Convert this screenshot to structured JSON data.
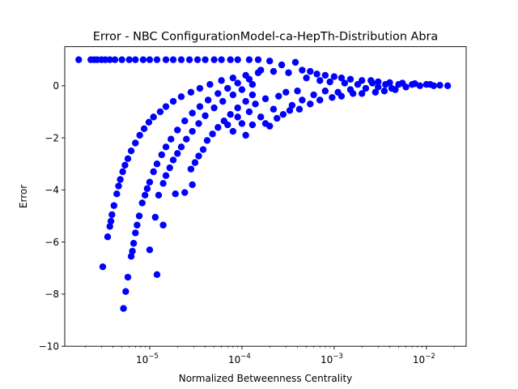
{
  "chart_data": {
    "type": "scatter",
    "title": "Error - NBC ConfigurationModel-ca-HepTh-Distribution Abra",
    "xlabel": "Normalized Betweenness Centrality",
    "ylabel": "Error",
    "xscale": "log",
    "xlim": [
      1.2e-06,
      0.027
    ],
    "ylim": [
      -10,
      1.5
    ],
    "x_ticks": [
      {
        "value": 1e-05,
        "base": "10",
        "exp": "−5"
      },
      {
        "value": 0.0001,
        "base": "10",
        "exp": "−4"
      },
      {
        "value": 0.001,
        "base": "10",
        "exp": "−3"
      },
      {
        "value": 0.01,
        "base": "10",
        "exp": "−2"
      }
    ],
    "y_ticks": [
      {
        "value": 0,
        "label": "0"
      },
      {
        "value": -2,
        "label": "−2"
      },
      {
        "value": -4,
        "label": "−4"
      },
      {
        "value": -6,
        "label": "−6"
      },
      {
        "value": -8,
        "label": "−8"
      },
      {
        "value": -10,
        "label": "−10"
      }
    ],
    "grid": false,
    "marker_color": "#0000ff",
    "series": [
      {
        "name": "",
        "points": [
          {
            "x": 1.7e-06,
            "y": 1.0
          },
          {
            "x": 2.3e-06,
            "y": 1.0
          },
          {
            "x": 2.5e-06,
            "y": 1.0
          },
          {
            "x": 2.7e-06,
            "y": 1.0
          },
          {
            "x": 3e-06,
            "y": 1.0
          },
          {
            "x": 3.3e-06,
            "y": 1.0
          },
          {
            "x": 3.7e-06,
            "y": 1.0
          },
          {
            "x": 4.2e-06,
            "y": 1.0
          },
          {
            "x": 5e-06,
            "y": 1.0
          },
          {
            "x": 6e-06,
            "y": 1.0
          },
          {
            "x": 7e-06,
            "y": 1.0
          },
          {
            "x": 8.5e-06,
            "y": 1.0
          },
          {
            "x": 1e-05,
            "y": 1.0
          },
          {
            "x": 1.2e-05,
            "y": 1.0
          },
          {
            "x": 1.5e-05,
            "y": 1.0
          },
          {
            "x": 1.8e-05,
            "y": 1.0
          },
          {
            "x": 2.2e-05,
            "y": 1.0
          },
          {
            "x": 2.7e-05,
            "y": 1.0
          },
          {
            "x": 3.3e-05,
            "y": 1.0
          },
          {
            "x": 4e-05,
            "y": 1.0
          },
          {
            "x": 5e-05,
            "y": 1.0
          },
          {
            "x": 6e-05,
            "y": 1.0
          },
          {
            "x": 7.5e-05,
            "y": 1.0
          },
          {
            "x": 9e-05,
            "y": 1.0
          },
          {
            "x": 0.00012,
            "y": 1.0
          },
          {
            "x": 0.00015,
            "y": 1.0
          },
          {
            "x": 0.0002,
            "y": 0.95
          },
          {
            "x": 3.1e-06,
            "y": -6.95
          },
          {
            "x": 3.5e-06,
            "y": -5.8
          },
          {
            "x": 3.7e-06,
            "y": -5.4
          },
          {
            "x": 3.8e-06,
            "y": -5.2
          },
          {
            "x": 3.9e-06,
            "y": -4.95
          },
          {
            "x": 4.1e-06,
            "y": -4.6
          },
          {
            "x": 4.4e-06,
            "y": -4.15
          },
          {
            "x": 4.6e-06,
            "y": -3.85
          },
          {
            "x": 4.8e-06,
            "y": -3.6
          },
          {
            "x": 5.1e-06,
            "y": -3.3
          },
          {
            "x": 5.4e-06,
            "y": -3.05
          },
          {
            "x": 5.8e-06,
            "y": -2.8
          },
          {
            "x": 6.3e-06,
            "y": -2.5
          },
          {
            "x": 7e-06,
            "y": -2.2
          },
          {
            "x": 7.8e-06,
            "y": -1.9
          },
          {
            "x": 8.7e-06,
            "y": -1.65
          },
          {
            "x": 9.8e-06,
            "y": -1.4
          },
          {
            "x": 1.1e-05,
            "y": -1.2
          },
          {
            "x": 1.3e-05,
            "y": -1.0
          },
          {
            "x": 1.5e-05,
            "y": -0.8
          },
          {
            "x": 1.8e-05,
            "y": -0.6
          },
          {
            "x": 2.2e-05,
            "y": -0.42
          },
          {
            "x": 2.8e-05,
            "y": -0.25
          },
          {
            "x": 3.5e-05,
            "y": -0.1
          },
          {
            "x": 4.5e-05,
            "y": 0.05
          },
          {
            "x": 6e-05,
            "y": 0.2
          },
          {
            "x": 8e-05,
            "y": 0.3
          },
          {
            "x": 0.00011,
            "y": 0.4
          },
          {
            "x": 0.00015,
            "y": 0.5
          },
          {
            "x": 5.2e-06,
            "y": -8.55
          },
          {
            "x": 5.5e-06,
            "y": -7.9
          },
          {
            "x": 5.8e-06,
            "y": -7.35
          },
          {
            "x": 6.3e-06,
            "y": -6.55
          },
          {
            "x": 6.5e-06,
            "y": -6.35
          },
          {
            "x": 6.7e-06,
            "y": -6.05
          },
          {
            "x": 7e-06,
            "y": -5.65
          },
          {
            "x": 7.3e-06,
            "y": -5.35
          },
          {
            "x": 7.7e-06,
            "y": -5.0
          },
          {
            "x": 8.3e-06,
            "y": -4.5
          },
          {
            "x": 8.9e-06,
            "y": -4.2
          },
          {
            "x": 9.4e-06,
            "y": -3.95
          },
          {
            "x": 1e-05,
            "y": -3.7
          },
          {
            "x": 1.1e-05,
            "y": -3.3
          },
          {
            "x": 1.2e-05,
            "y": -3.0
          },
          {
            "x": 1.35e-05,
            "y": -2.65
          },
          {
            "x": 1.5e-05,
            "y": -2.35
          },
          {
            "x": 1.7e-05,
            "y": -2.05
          },
          {
            "x": 2e-05,
            "y": -1.7
          },
          {
            "x": 2.4e-05,
            "y": -1.35
          },
          {
            "x": 2.9e-05,
            "y": -1.05
          },
          {
            "x": 3.5e-05,
            "y": -0.8
          },
          {
            "x": 4.3e-05,
            "y": -0.55
          },
          {
            "x": 5.5e-05,
            "y": -0.3
          },
          {
            "x": 7e-05,
            "y": -0.1
          },
          {
            "x": 9e-05,
            "y": 0.1
          },
          {
            "x": 0.00012,
            "y": 0.25
          },
          {
            "x": 1.15e-05,
            "y": -5.05
          },
          {
            "x": 1.25e-05,
            "y": -4.2
          },
          {
            "x": 1.4e-05,
            "y": -3.75
          },
          {
            "x": 1.5e-05,
            "y": -3.45
          },
          {
            "x": 1.65e-05,
            "y": -3.15
          },
          {
            "x": 1.8e-05,
            "y": -2.85
          },
          {
            "x": 2e-05,
            "y": -2.6
          },
          {
            "x": 2.2e-05,
            "y": -2.35
          },
          {
            "x": 2.5e-05,
            "y": -2.05
          },
          {
            "x": 2.9e-05,
            "y": -1.75
          },
          {
            "x": 3.4e-05,
            "y": -1.45
          },
          {
            "x": 4e-05,
            "y": -1.15
          },
          {
            "x": 5e-05,
            "y": -0.85
          },
          {
            "x": 6.2e-05,
            "y": -0.6
          },
          {
            "x": 8e-05,
            "y": -0.35
          },
          {
            "x": 0.0001,
            "y": -0.15
          },
          {
            "x": 0.00013,
            "y": 0.05
          },
          {
            "x": 1e-05,
            "y": -6.3
          },
          {
            "x": 1.2e-05,
            "y": -7.25
          },
          {
            "x": 1.4e-05,
            "y": -5.35
          },
          {
            "x": 1.9e-05,
            "y": -4.15
          },
          {
            "x": 2.4e-05,
            "y": -4.1
          },
          {
            "x": 2.9e-05,
            "y": -3.8
          },
          {
            "x": 2.8e-05,
            "y": -3.2
          },
          {
            "x": 3.1e-05,
            "y": -2.95
          },
          {
            "x": 3.4e-05,
            "y": -2.7
          },
          {
            "x": 3.8e-05,
            "y": -2.45
          },
          {
            "x": 4.2e-05,
            "y": -2.1
          },
          {
            "x": 4.8e-05,
            "y": -1.85
          },
          {
            "x": 5.5e-05,
            "y": -1.6
          },
          {
            "x": 6.4e-05,
            "y": -1.35
          },
          {
            "x": 7.5e-05,
            "y": -1.1
          },
          {
            "x": 9e-05,
            "y": -0.85
          },
          {
            "x": 0.00011,
            "y": -0.6
          },
          {
            "x": 0.00013,
            "y": -0.35
          },
          {
            "x": 7e-05,
            "y": -1.5
          },
          {
            "x": 8e-05,
            "y": -1.75
          },
          {
            "x": 9e-05,
            "y": -1.2
          },
          {
            "x": 0.0001,
            "y": -1.45
          },
          {
            "x": 0.00011,
            "y": -1.9
          },
          {
            "x": 0.00012,
            "y": -1.0
          },
          {
            "x": 0.00013,
            "y": -1.5
          },
          {
            "x": 0.00014,
            "y": -0.7
          },
          {
            "x": 0.00016,
            "y": -1.2
          },
          {
            "x": 0.00018,
            "y": -0.5
          },
          {
            "x": 0.0002,
            "y": -1.55
          },
          {
            "x": 0.00022,
            "y": -0.9
          },
          {
            "x": 0.00025,
            "y": -0.4
          },
          {
            "x": 0.00028,
            "y": -1.1
          },
          {
            "x": 0.0003,
            "y": -0.25
          },
          {
            "x": 0.00035,
            "y": -0.75
          },
          {
            "x": 0.0004,
            "y": -0.2
          },
          {
            "x": 0.00045,
            "y": -0.55
          },
          {
            "x": 0.0005,
            "y": 0.3
          },
          {
            "x": 0.0006,
            "y": -0.35
          },
          {
            "x": 0.0007,
            "y": 0.2
          },
          {
            "x": 0.0008,
            "y": -0.2
          },
          {
            "x": 0.0009,
            "y": 0.15
          },
          {
            "x": 0.0011,
            "y": -0.25
          },
          {
            "x": 0.0013,
            "y": 0.1
          },
          {
            "x": 0.0015,
            "y": -0.15
          },
          {
            "x": 0.0018,
            "y": 0.05
          },
          {
            "x": 0.0022,
            "y": -0.1
          },
          {
            "x": 0.0026,
            "y": 0.1
          },
          {
            "x": 0.003,
            "y": -0.05
          },
          {
            "x": 0.0036,
            "y": 0.05
          },
          {
            "x": 0.0042,
            "y": -0.1
          },
          {
            "x": 0.005,
            "y": 0.05
          },
          {
            "x": 0.006,
            "y": -0.05
          },
          {
            "x": 0.007,
            "y": 0.05
          },
          {
            "x": 0.0085,
            "y": 0.0
          },
          {
            "x": 0.01,
            "y": 0.05
          },
          {
            "x": 0.012,
            "y": 0.0
          },
          {
            "x": 0.014,
            "y": 0.02
          },
          {
            "x": 0.017,
            "y": 0.0
          },
          {
            "x": 0.00016,
            "y": 0.6
          },
          {
            "x": 0.00022,
            "y": 0.55
          },
          {
            "x": 0.00027,
            "y": 0.8
          },
          {
            "x": 0.00032,
            "y": 0.5
          },
          {
            "x": 0.00038,
            "y": 0.9
          },
          {
            "x": 0.00045,
            "y": 0.6
          },
          {
            "x": 0.00055,
            "y": 0.55
          },
          {
            "x": 0.00065,
            "y": 0.45
          },
          {
            "x": 0.0008,
            "y": 0.4
          },
          {
            "x": 0.001,
            "y": 0.35
          },
          {
            "x": 0.0012,
            "y": 0.3
          },
          {
            "x": 0.0015,
            "y": 0.25
          },
          {
            "x": 0.002,
            "y": 0.2
          },
          {
            "x": 0.0025,
            "y": 0.2
          },
          {
            "x": 0.003,
            "y": 0.15
          },
          {
            "x": 0.004,
            "y": 0.12
          },
          {
            "x": 0.0055,
            "y": 0.1
          },
          {
            "x": 0.0075,
            "y": 0.08
          },
          {
            "x": 0.011,
            "y": 0.05
          },
          {
            "x": 0.00018,
            "y": -1.45
          },
          {
            "x": 0.00024,
            "y": -1.25
          },
          {
            "x": 0.00033,
            "y": -0.95
          },
          {
            "x": 0.00042,
            "y": -0.9
          },
          {
            "x": 0.00055,
            "y": -0.7
          },
          {
            "x": 0.0007,
            "y": -0.55
          },
          {
            "x": 0.00095,
            "y": -0.45
          },
          {
            "x": 0.0012,
            "y": -0.4
          },
          {
            "x": 0.0016,
            "y": -0.3
          },
          {
            "x": 0.002,
            "y": -0.3
          },
          {
            "x": 0.0028,
            "y": -0.25
          },
          {
            "x": 0.0035,
            "y": -0.2
          },
          {
            "x": 0.0046,
            "y": -0.15
          }
        ]
      }
    ]
  }
}
